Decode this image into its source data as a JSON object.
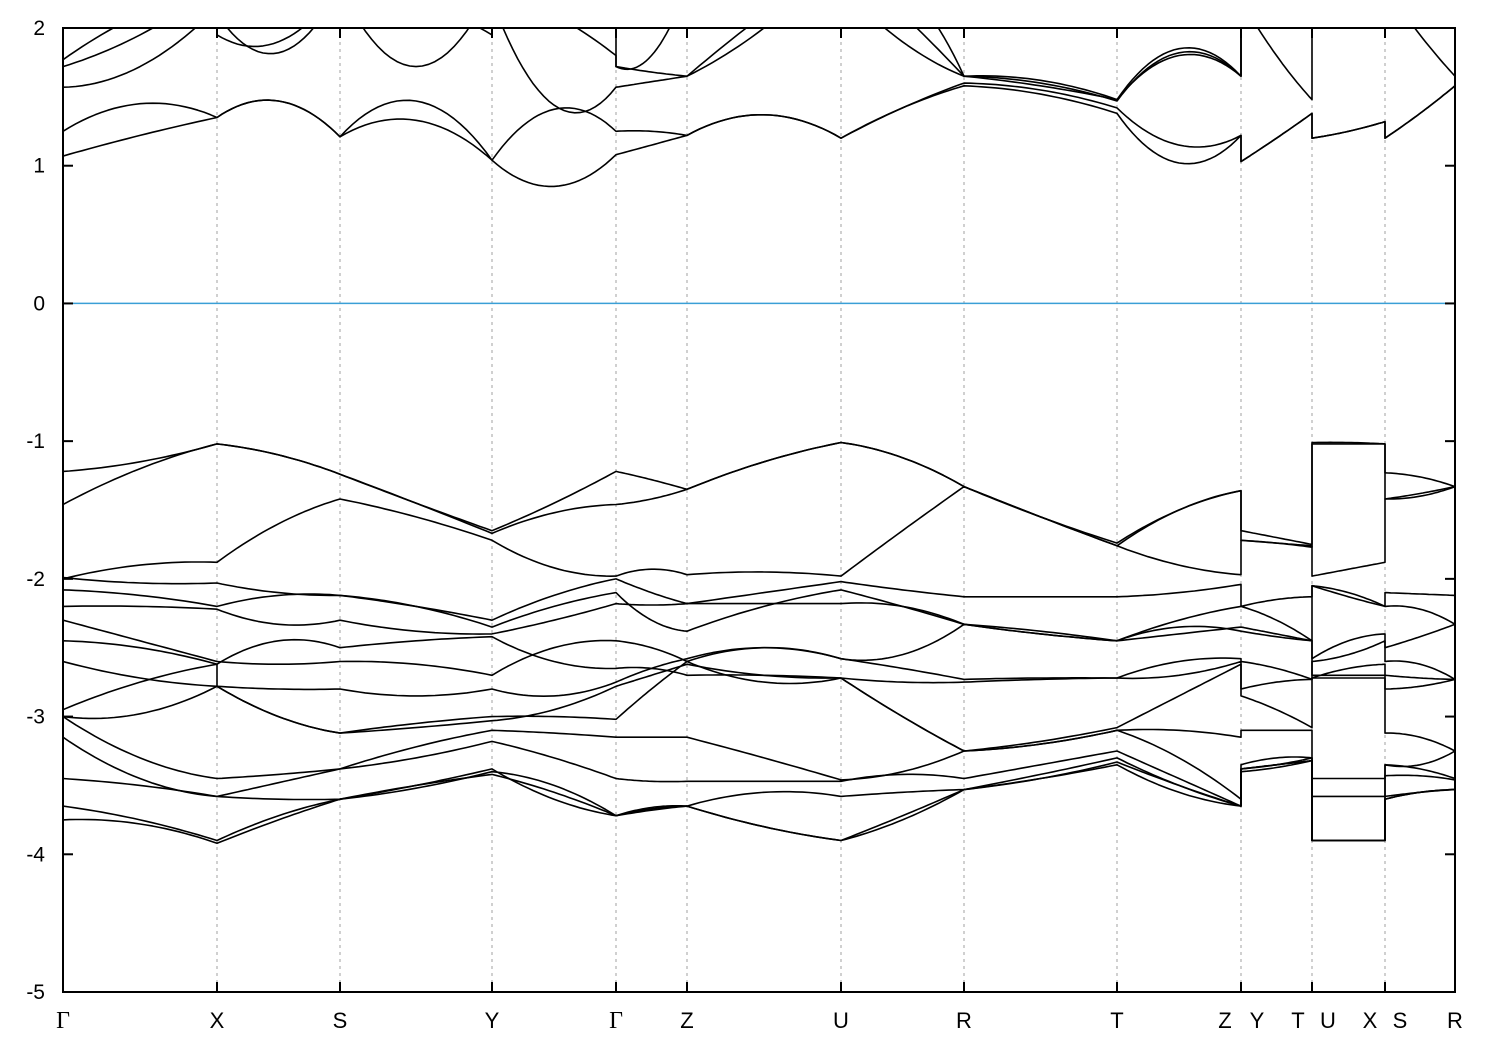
{
  "chart_data": {
    "type": "line",
    "title": "",
    "xlabel": "",
    "ylabel": "",
    "ylim": [
      -5,
      2
    ],
    "yticks": [
      "2",
      "1",
      "0",
      "-1",
      "-2",
      "-3",
      "-4",
      "-5"
    ],
    "ytick_values": [
      2,
      1,
      0,
      -1,
      -2,
      -3,
      -4,
      -5
    ],
    "kpath_labels": [
      "Γ",
      "X",
      "S",
      "Y",
      "Γ",
      "Z",
      "U",
      "R",
      "T",
      "Z",
      "Y",
      "T",
      "U",
      "X",
      "S",
      "R"
    ],
    "segments": [
      "Γ-X",
      "X-S",
      "S-Y",
      "Y-Γ",
      "Γ-Z",
      "Z-U",
      "U-R",
      "R-T",
      "T-Z",
      "Y-T",
      "U-X",
      "S-R"
    ],
    "fermi_level": 0,
    "grid": "vertical dotted lines at high-symmetry points",
    "colors": {
      "bands": "#000000",
      "fermi_line": "#3a9fd6",
      "grid": "#a0a0a0"
    },
    "bands": [
      [
        [
          1.07,
          1.22,
          1.35
        ],
        [
          1.35,
          1.47,
          1.21
        ],
        [
          1.21,
          1.33,
          1.04
        ],
        [
          1.04,
          0.85,
          1.08
        ],
        [
          1.08,
          1.15,
          1.22
        ],
        [
          1.22,
          1.37,
          1.2
        ],
        [
          1.2,
          1.42,
          1.58
        ],
        [
          1.58,
          1.52,
          1.38
        ],
        [
          1.38,
          1.02,
          1.22
        ],
        [
          1.03,
          1.2,
          1.38
        ],
        [
          1.2,
          1.25,
          1.32
        ],
        [
          1.2,
          1.38,
          1.58
        ]
      ],
      [
        [
          1.25,
          1.45,
          1.35
        ],
        [
          1.35,
          1.47,
          1.21
        ],
        [
          1.21,
          1.47,
          1.04
        ],
        [
          1.04,
          1.41,
          1.25
        ],
        [
          1.25,
          1.25,
          1.22
        ],
        [
          1.22,
          1.37,
          1.2
        ],
        [
          1.2,
          1.42,
          1.6
        ],
        [
          1.6,
          1.55,
          1.42
        ],
        [
          1.42,
          1.15,
          1.22
        ],
        [
          1.03,
          1.2,
          1.38
        ],
        [
          1.2,
          1.25,
          1.32
        ],
        [
          1.2,
          1.38,
          1.58
        ]
      ],
      [
        [
          1.57,
          1.72,
          2.15
        ],
        [
          2.15,
          2.3,
          2.3
        ],
        [
          2.3,
          2.2,
          1.95
        ],
        [
          2.2,
          1.44,
          1.57
        ],
        [
          1.57,
          1.61,
          1.65
        ],
        [
          1.65,
          2.0,
          2.5
        ],
        [
          2.3,
          1.9,
          1.65
        ],
        [
          1.65,
          1.6,
          1.47
        ],
        [
          1.47,
          1.82,
          1.65
        ],
        [
          2.2,
          1.8,
          1.48
        ],
        [
          2.3,
          2.3,
          2.3
        ],
        [
          2.3,
          1.95,
          1.65
        ]
      ],
      [
        [
          1.77,
          2.1,
          2.3
        ],
        [
          2.1,
          1.82,
          2.3
        ],
        [
          2.3,
          1.72,
          2.3
        ],
        [
          2.3,
          2.1,
          1.8
        ],
        [
          1.72,
          1.68,
          1.65
        ],
        [
          1.65,
          2.1,
          2.5
        ],
        [
          2.5,
          2.1,
          1.65
        ],
        [
          1.65,
          1.58,
          1.48
        ],
        [
          1.48,
          1.85,
          1.65
        ],
        [
          2.3,
          2.3,
          2.3
        ],
        [
          2.3,
          2.3,
          2.3
        ],
        [
          2.3,
          2.3,
          2.3
        ]
      ],
      [
        [
          1.72,
          1.95,
          2.3
        ],
        [
          1.95,
          1.9,
          2.3
        ],
        [
          2.3,
          2.3,
          2.3
        ],
        [
          2.3,
          2.3,
          2.3
        ],
        [
          1.72,
          1.8,
          2.3
        ],
        [
          2.3,
          2.3,
          2.3
        ],
        [
          2.3,
          2.3,
          1.65
        ],
        [
          1.65,
          1.62,
          1.48
        ],
        [
          1.48,
          1.8,
          1.65
        ],
        [
          2.3,
          2.3,
          2.3
        ],
        [
          2.3,
          2.3,
          2.3
        ],
        [
          2.3,
          2.3,
          2.3
        ]
      ],
      [
        [
          -1.22,
          -1.15,
          -1.02
        ],
        [
          -1.02,
          -1.1,
          -1.24
        ],
        [
          -1.24,
          -1.45,
          -1.65
        ],
        [
          -1.65,
          -1.45,
          -1.22
        ],
        [
          -1.22,
          -1.28,
          -1.35
        ],
        [
          -1.35,
          -1.15,
          -1.01
        ],
        [
          -1.01,
          -1.12,
          -1.33
        ],
        [
          -1.33,
          -1.55,
          -1.74
        ],
        [
          -1.74,
          -1.5,
          -1.36
        ],
        [
          -1.65,
          -1.7,
          -1.75
        ],
        [
          -1.01,
          -1.01,
          -1.02
        ],
        [
          -1.23,
          -1.26,
          -1.33
        ]
      ],
      [
        [
          -1.46,
          -1.2,
          -1.02
        ],
        [
          -1.02,
          -1.1,
          -1.24
        ],
        [
          -1.24,
          -1.45,
          -1.67
        ],
        [
          -1.67,
          -1.52,
          -1.46
        ],
        [
          -1.46,
          -1.42,
          -1.35
        ],
        [
          -1.35,
          -1.15,
          -1.01
        ],
        [
          -1.01,
          -1.12,
          -1.33
        ],
        [
          -1.33,
          -1.55,
          -1.76
        ],
        [
          -1.76,
          -1.5,
          -1.36
        ],
        [
          -1.72,
          -1.74,
          -1.77
        ],
        [
          -1.02,
          -1.02,
          -1.02
        ],
        [
          -1.42,
          -1.38,
          -1.33
        ]
      ],
      [
        [
          -2.0,
          -1.9,
          -1.88
        ],
        [
          -1.88,
          -1.6,
          -1.42
        ],
        [
          -1.42,
          -1.55,
          -1.72
        ],
        [
          -1.72,
          -1.92,
          -1.98
        ],
        [
          -1.98,
          -1.93,
          -1.97
        ],
        [
          -1.97,
          -1.95,
          -1.98
        ],
        [
          -1.98,
          -1.65,
          -1.33
        ],
        [
          -1.33,
          -1.55,
          -1.76
        ],
        [
          -1.76,
          -1.9,
          -1.97
        ],
        [
          -1.72,
          -1.74,
          -1.76
        ],
        [
          -1.98,
          -1.93,
          -1.88
        ],
        [
          -1.42,
          -1.4,
          -1.33
        ]
      ],
      [
        [
          -1.99,
          -2.03,
          -2.03
        ],
        [
          -2.03,
          -2.1,
          -2.12
        ],
        [
          -2.12,
          -2.2,
          -2.3
        ],
        [
          -2.3,
          -2.12,
          -2.0
        ],
        [
          -2.0,
          -2.1,
          -2.18
        ],
        [
          -2.18,
          -2.1,
          -2.02
        ],
        [
          -2.02,
          -2.08,
          -2.13
        ],
        [
          -2.13,
          -2.13,
          -2.13
        ],
        [
          -2.13,
          -2.1,
          -2.04
        ],
        [
          -2.2,
          -2.15,
          -2.13
        ],
        [
          -2.05,
          -2.1,
          -2.2
        ],
        [
          -2.1,
          -2.11,
          -2.12
        ]
      ],
      [
        [
          -2.08,
          -2.12,
          -2.2
        ],
        [
          -2.2,
          -2.12,
          -2.12
        ],
        [
          -2.12,
          -2.2,
          -2.35
        ],
        [
          -2.35,
          -2.2,
          -2.1
        ],
        [
          -2.1,
          -2.3,
          -2.38
        ],
        [
          -2.38,
          -2.2,
          -2.08
        ],
        [
          -2.08,
          -2.2,
          -2.33
        ],
        [
          -2.33,
          -2.38,
          -2.45
        ],
        [
          -2.45,
          -2.3,
          -2.2
        ],
        [
          -2.2,
          -2.3,
          -2.45
        ],
        [
          -2.05,
          -2.13,
          -2.2
        ],
        [
          -2.2,
          -2.22,
          -2.33
        ]
      ],
      [
        [
          -2.2,
          -2.2,
          -2.22
        ],
        [
          -2.22,
          -2.33,
          -2.3
        ],
        [
          -2.3,
          -2.38,
          -2.4
        ],
        [
          -2.4,
          -2.3,
          -2.18
        ],
        [
          -2.18,
          -2.19,
          -2.18
        ],
        [
          -2.18,
          -2.18,
          -2.18
        ],
        [
          -2.18,
          -2.2,
          -2.33
        ],
        [
          -2.33,
          -2.4,
          -2.45
        ],
        [
          -2.45,
          -2.4,
          -2.35
        ],
        [
          -2.35,
          -2.4,
          -2.45
        ],
        [
          -2.58,
          -2.45,
          -2.4
        ],
        [
          -2.5,
          -2.42,
          -2.33
        ]
      ],
      [
        [
          -2.3,
          -2.45,
          -2.6
        ],
        [
          -2.6,
          -2.62,
          -2.6
        ],
        [
          -2.6,
          -2.62,
          -2.7
        ],
        [
          -2.7,
          -2.5,
          -2.45
        ],
        [
          -2.45,
          -2.5,
          -2.6
        ],
        [
          -2.6,
          -2.5,
          -2.58
        ],
        [
          -2.58,
          -2.65,
          -2.73
        ],
        [
          -2.73,
          -2.72,
          -2.72
        ],
        [
          -2.72,
          -2.6,
          -2.58
        ],
        [
          -2.6,
          -2.65,
          -2.73
        ],
        [
          -2.6,
          -2.55,
          -2.45
        ],
        [
          -2.6,
          -2.62,
          -2.73
        ]
      ],
      [
        [
          -2.45,
          -2.5,
          -2.62
        ],
        [
          -2.62,
          -2.45,
          -2.5
        ],
        [
          -2.5,
          -2.45,
          -2.42
        ],
        [
          -2.42,
          -2.6,
          -2.65
        ],
        [
          -2.65,
          -2.65,
          -2.7
        ],
        [
          -2.7,
          -2.7,
          -2.72
        ],
        [
          -2.72,
          -2.75,
          -2.75
        ],
        [
          -2.75,
          -2.73,
          -2.72
        ],
        [
          -2.72,
          -2.7,
          -2.6
        ],
        [
          -2.8,
          -2.75,
          -2.73
        ],
        [
          -2.72,
          -2.65,
          -2.62
        ],
        [
          -2.8,
          -2.78,
          -2.73
        ]
      ],
      [
        [
          -2.6,
          -2.72,
          -2.78
        ],
        [
          -2.78,
          -2.8,
          -2.8
        ],
        [
          -2.8,
          -2.85,
          -2.8
        ],
        [
          -2.8,
          -2.85,
          -2.75
        ],
        [
          -2.75,
          -2.65,
          -2.58
        ],
        [
          -2.58,
          -2.5,
          -2.58
        ],
        [
          -2.58,
          -2.55,
          -2.33
        ],
        [
          -2.33,
          -2.4,
          -2.45
        ],
        [
          -2.45,
          -2.35,
          -2.38
        ],
        [
          -2.38,
          -2.42,
          -2.45
        ],
        [
          -2.7,
          -2.7,
          -2.7
        ],
        [
          -2.7,
          -2.72,
          -2.73
        ]
      ],
      [
        [
          -2.95,
          -2.75,
          -2.62
        ],
        [
          -2.78,
          -3.0,
          -3.12
        ],
        [
          -3.12,
          -3.08,
          -3.03
        ],
        [
          -3.03,
          -2.95,
          -2.78
        ],
        [
          -2.78,
          -2.7,
          -2.62
        ],
        [
          -2.62,
          -2.7,
          -2.72
        ],
        [
          -2.72,
          -3.0,
          -3.25
        ],
        [
          -3.25,
          -3.18,
          -3.08
        ],
        [
          -3.08,
          -2.85,
          -2.62
        ],
        [
          -2.85,
          -2.95,
          -3.08
        ],
        [
          -2.72,
          -2.72,
          -2.72
        ],
        [
          -3.12,
          -3.15,
          -3.25
        ]
      ],
      [
        [
          -3.0,
          -2.98,
          -2.78
        ],
        [
          -2.78,
          -3.0,
          -3.12
        ],
        [
          -3.12,
          -3.05,
          -3.0
        ],
        [
          -3.0,
          -3.0,
          -3.02
        ],
        [
          -3.02,
          -2.8,
          -2.6
        ],
        [
          -2.6,
          -2.75,
          -2.72
        ],
        [
          -2.72,
          -3.0,
          -3.25
        ],
        [
          -3.25,
          -3.2,
          -3.1
        ],
        [
          -3.1,
          -3.1,
          -3.15
        ],
        [
          -3.1,
          -3.1,
          -3.1
        ],
        [
          -3.45,
          -3.45,
          -3.45
        ],
        [
          -3.35,
          -3.38,
          -3.45
        ]
      ],
      [
        [
          -3.0,
          -3.3,
          -3.45
        ],
        [
          -3.45,
          -3.42,
          -3.38
        ],
        [
          -3.38,
          -3.22,
          -3.1
        ],
        [
          -3.1,
          -3.12,
          -3.15
        ],
        [
          -3.15,
          -3.15,
          -3.15
        ],
        [
          -3.15,
          -3.3,
          -3.46
        ],
        [
          -3.46,
          -3.4,
          -3.25
        ],
        [
          -3.25,
          -3.2,
          -3.1
        ],
        [
          -3.1,
          -3.3,
          -3.6
        ],
        [
          -3.35,
          -3.3,
          -3.3
        ],
        [
          -3.58,
          -3.58,
          -3.58
        ],
        [
          -3.43,
          -3.43,
          -3.46
        ]
      ],
      [
        [
          -3.15,
          -3.45,
          -3.58
        ],
        [
          -3.58,
          -3.48,
          -3.38
        ],
        [
          -3.38,
          -3.3,
          -3.18
        ],
        [
          -3.18,
          -3.3,
          -3.45
        ],
        [
          -3.45,
          -3.47,
          -3.47
        ],
        [
          -3.47,
          -3.47,
          -3.47
        ],
        [
          -3.47,
          -3.42,
          -3.45
        ],
        [
          -3.45,
          -3.35,
          -3.25
        ],
        [
          -3.25,
          -3.45,
          -3.65
        ],
        [
          -3.38,
          -3.35,
          -3.3
        ],
        [
          -3.9,
          -3.9,
          -3.9
        ],
        [
          -3.35,
          -3.35,
          -3.25
        ]
      ],
      [
        [
          -3.45,
          -3.5,
          -3.58
        ],
        [
          -3.58,
          -3.6,
          -3.6
        ],
        [
          -3.6,
          -3.5,
          -3.38
        ],
        [
          -3.38,
          -3.6,
          -3.72
        ],
        [
          -3.72,
          -3.68,
          -3.65
        ],
        [
          -3.65,
          -3.55,
          -3.58
        ],
        [
          -3.58,
          -3.55,
          -3.53
        ],
        [
          -3.53,
          -3.45,
          -3.33
        ],
        [
          -3.33,
          -3.5,
          -3.65
        ],
        [
          -3.38,
          -3.35,
          -3.32
        ],
        [
          -3.9,
          -3.9,
          -3.9
        ],
        [
          -3.6,
          -3.55,
          -3.53
        ]
      ],
      [
        [
          -3.65,
          -3.75,
          -3.9
        ],
        [
          -3.9,
          -3.72,
          -3.6
        ],
        [
          -3.6,
          -3.5,
          -3.42
        ],
        [
          -3.42,
          -3.55,
          -3.72
        ],
        [
          -3.72,
          -3.66,
          -3.65
        ],
        [
          -3.65,
          -3.8,
          -3.9
        ],
        [
          -3.9,
          -3.75,
          -3.53
        ],
        [
          -3.53,
          -3.45,
          -3.35
        ],
        [
          -3.35,
          -3.55,
          -3.65
        ],
        [
          -3.38,
          -3.35,
          -3.32
        ],
        [
          -3.9,
          -3.9,
          -3.9
        ],
        [
          -3.6,
          -3.55,
          -3.53
        ]
      ],
      [
        [
          -3.75,
          -3.78,
          -3.92
        ],
        [
          -3.92,
          -3.75,
          -3.6
        ],
        [
          -3.6,
          -3.52,
          -3.4
        ],
        [
          -3.4,
          -3.5,
          -3.72
        ],
        [
          -3.72,
          -3.67,
          -3.65
        ],
        [
          -3.65,
          -3.8,
          -3.9
        ],
        [
          -3.9,
          -3.72,
          -3.53
        ],
        [
          -3.53,
          -3.42,
          -3.3
        ],
        [
          -3.3,
          -3.5,
          -3.65
        ],
        [
          -3.4,
          -3.37,
          -3.32
        ],
        [
          -3.9,
          -3.9,
          -3.9
        ],
        [
          -3.58,
          -3.55,
          -3.53
        ]
      ]
    ]
  }
}
